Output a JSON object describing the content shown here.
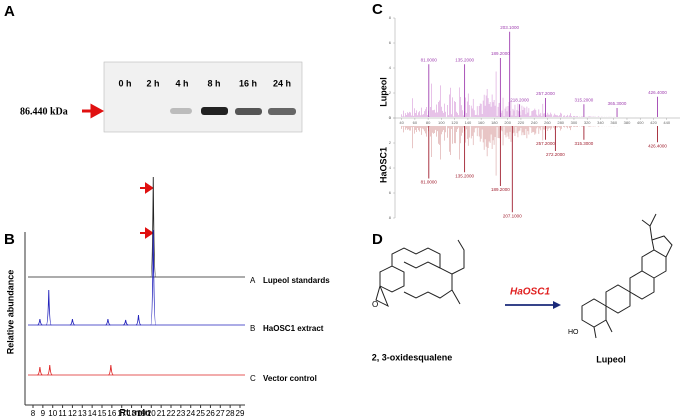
{
  "panels": [
    "A",
    "B",
    "C",
    "D"
  ],
  "blot": {
    "marker": "86.440 kDa",
    "lanes": [
      "0 h",
      "2 h",
      "4 h",
      "8 h",
      "16 h",
      "24 h"
    ]
  },
  "chromatogram": {
    "ylabel": "Relative abundance",
    "xlabel": "Rt :min",
    "xlim": [
      8,
      29
    ],
    "xticks": [
      8,
      9,
      10,
      11,
      12,
      13,
      14,
      15,
      16,
      17,
      18,
      19,
      20,
      21,
      22,
      23,
      24,
      25,
      26,
      27,
      28,
      29
    ],
    "ylim": [
      0,
      1
    ],
    "traces": [
      {
        "letter": "A",
        "name": "Lupeol standards",
        "color": "#222222",
        "peaks": [
          {
            "rt": 20.2,
            "height": 1.0
          }
        ]
      },
      {
        "letter": "B",
        "name": "HaOSC1 extract",
        "color": "#2222bb",
        "peaks": [
          {
            "rt": 9.6,
            "height": 0.35
          },
          {
            "rt": 8.7,
            "height": 0.06
          },
          {
            "rt": 12.0,
            "height": 0.06
          },
          {
            "rt": 15.6,
            "height": 0.06
          },
          {
            "rt": 17.4,
            "height": 0.05
          },
          {
            "rt": 18.7,
            "height": 0.1
          },
          {
            "rt": 20.2,
            "height": 0.95
          }
        ]
      },
      {
        "letter": "C",
        "name": "Vector control",
        "color": "#dd2222",
        "peaks": [
          {
            "rt": 8.7,
            "height": 0.08
          },
          {
            "rt": 9.7,
            "height": 0.1
          },
          {
            "rt": 15.9,
            "height": 0.1
          }
        ]
      }
    ]
  },
  "spectrum": {
    "top_label": "Lupeol",
    "bottom_label": "HaOSC1",
    "xlim": [
      30,
      460
    ],
    "xticks": [
      40,
      60,
      80,
      100,
      120,
      140,
      160,
      180,
      200,
      220,
      240,
      260,
      280,
      300,
      320,
      340,
      360,
      380,
      400,
      420,
      440
    ],
    "ylim": [
      0,
      8
    ],
    "yticks": [
      0,
      2,
      4,
      6,
      8
    ],
    "top_peaks": [
      {
        "mz": 81,
        "height": 4.3,
        "label": "81.0000"
      },
      {
        "mz": 135,
        "height": 4.3,
        "label": "135.2000"
      },
      {
        "mz": 189,
        "height": 4.8,
        "label": "189.2000"
      },
      {
        "mz": 203,
        "height": 6.9,
        "label": "203.1000"
      },
      {
        "mz": 218,
        "height": 1.1,
        "label": "218.2000"
      },
      {
        "mz": 257,
        "height": 1.6,
        "label": "257.2000"
      },
      {
        "mz": 315,
        "height": 1.1,
        "label": "315.2000"
      },
      {
        "mz": 365,
        "height": 0.8,
        "label": "365.3000"
      },
      {
        "mz": 426,
        "height": 1.7,
        "label": "426.4000"
      }
    ],
    "bottom_peaks": [
      {
        "mz": 81,
        "height": 4.2,
        "label": "81.0000"
      },
      {
        "mz": 135,
        "height": 3.7,
        "label": "135.2000"
      },
      {
        "mz": 189,
        "height": 4.8,
        "label": "189.2000"
      },
      {
        "mz": 207,
        "height": 6.9,
        "label": "207.1000"
      },
      {
        "mz": 257,
        "height": 1.1,
        "label": "257.2000"
      },
      {
        "mz": 272,
        "height": 2.0,
        "label": "272.2000"
      },
      {
        "mz": 315,
        "height": 1.1,
        "label": "315.3000"
      },
      {
        "mz": 426,
        "height": 1.3,
        "label": "426.4000"
      }
    ]
  },
  "reaction": {
    "substrate": "2, 3-oxidesqualene",
    "substrate_atom": "O",
    "enzyme": "HaOSC1",
    "product": "Lupeol",
    "product_group": "HO"
  }
}
